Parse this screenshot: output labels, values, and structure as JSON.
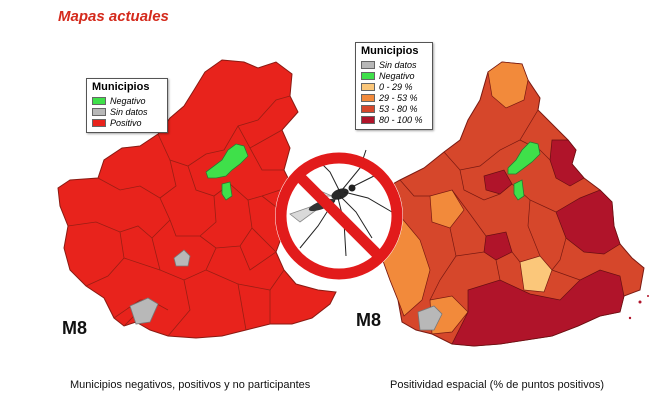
{
  "page": {
    "title": "Mapas actuales"
  },
  "colors": {
    "positivo": "#e8231c",
    "negativo": "#3fe04a",
    "sin_datos": "#b8b8b8",
    "p0_29": "#fbc77a",
    "p29_53": "#f28a3b",
    "p53_80": "#d6472b",
    "p80_100": "#b0142a"
  },
  "map_left": {
    "label": "M8",
    "caption": "Municipios negativos, positivos y no participantes",
    "legend": {
      "title": "Municipios",
      "items": [
        {
          "label": "Negativo",
          "color": "#3fe04a"
        },
        {
          "label": "Sin datos",
          "color": "#b8b8b8"
        },
        {
          "label": "Positivo",
          "color": "#e8231c"
        }
      ]
    }
  },
  "map_right": {
    "label": "M8",
    "caption": "Positividad espacial (% de puntos positivos)",
    "legend": {
      "title": "Municipios",
      "items": [
        {
          "label": "Sin datos",
          "color": "#b8b8b8"
        },
        {
          "label": "Negativo",
          "color": "#3fe04a"
        },
        {
          "label": "0 - 29 %",
          "color": "#fbc77a"
        },
        {
          "label": "29 - 53 %",
          "color": "#f28a3b"
        },
        {
          "label": "53 - 80 %",
          "color": "#d6472b"
        },
        {
          "label": "80 - 100 %",
          "color": "#b0142a"
        }
      ]
    }
  },
  "icon": {
    "name": "no-mosquito-icon"
  }
}
